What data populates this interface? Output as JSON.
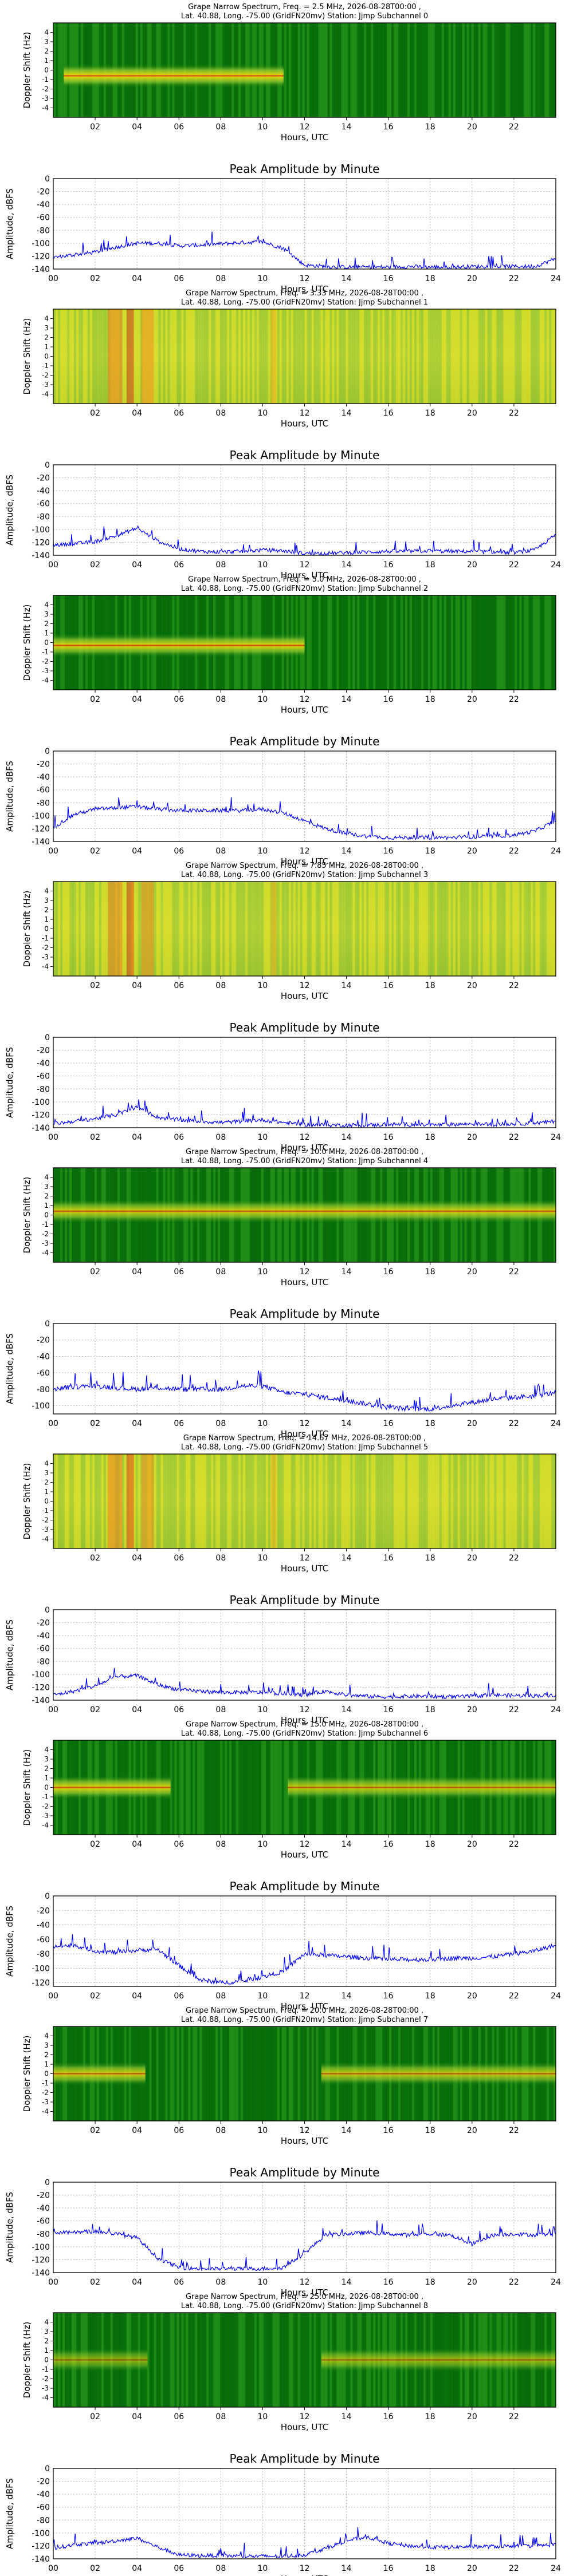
{
  "figure": {
    "common_xlabel": "Hours, UTC",
    "amp_title": "Peak Amplitude by Minute",
    "amp_ylabel": "Amplitude, dBFS",
    "spec_ylabel": "Doppler Shift (Hz)",
    "spec_xticks": [
      "02",
      "04",
      "06",
      "08",
      "10",
      "12",
      "14",
      "16",
      "18",
      "20",
      "22"
    ],
    "amp_xticks": [
      "00",
      "02",
      "04",
      "06",
      "08",
      "10",
      "12",
      "14",
      "16",
      "18",
      "20",
      "22",
      "24"
    ],
    "spec_yticks": [
      "4",
      "3",
      "2",
      "1",
      "0",
      "-1",
      "-2",
      "-3",
      "-4"
    ],
    "colors": {
      "line": "#0000ff",
      "spec_green": "#0b7a0b",
      "spec_yellow": "#e8e800",
      "spec_red": "#e82000"
    }
  },
  "chart_data": [
    {
      "type": "heatmap",
      "subchannel": 0,
      "title": "Grape Narrow Spectrum, Freq. = 2.5 MHz, 2026-08-28T00:00 ,",
      "subtitle": "Lat.  40.88, Long. -75.00 (GridFN20mv) Station: Jjmp Subchannel 0",
      "xlabel": "Hours, UTC",
      "ylabel": "Doppler Shift (Hz)",
      "xlim": [
        0,
        24
      ],
      "ylim": [
        -5,
        5
      ],
      "bands": [
        {
          "from": 0.5,
          "to": 11.0,
          "center_hz": -0.6,
          "intensity": 0.9
        }
      ],
      "background": "green"
    },
    {
      "type": "line",
      "subchannel": 0,
      "title": "Peak Amplitude by Minute",
      "xlabel": "Hours, UTC",
      "ylabel": "Amplitude, dBFS",
      "xlim": [
        0,
        24
      ],
      "ylim": [
        -140,
        0
      ],
      "yticks": [
        0,
        -20,
        -40,
        -60,
        -80,
        -100,
        -120,
        -140
      ],
      "x": [
        0,
        1,
        2,
        3,
        4,
        5,
        6,
        7,
        8,
        9,
        10,
        11,
        12,
        13,
        14,
        15,
        16,
        17,
        18,
        19,
        20,
        21,
        22,
        23,
        24
      ],
      "y": [
        -122,
        -118,
        -114,
        -106,
        -100,
        -100,
        -104,
        -103,
        -101,
        -99,
        -98,
        -108,
        -134,
        -136,
        -137,
        -137,
        -137,
        -136,
        -137,
        -137,
        -136,
        -136,
        -136,
        -136,
        -124
      ]
    },
    {
      "type": "heatmap",
      "subchannel": 1,
      "title": "Grape Narrow Spectrum, Freq. = 3.33 MHz, 2026-08-28T00:00 ,",
      "subtitle": "Lat.  40.88, Long. -75.00 (GridFN20mv) Station: Jjmp Subchannel 1",
      "xlabel": "Hours, UTC",
      "ylabel": "Doppler Shift (Hz)",
      "xlim": [
        0,
        24
      ],
      "ylim": [
        -5,
        5
      ],
      "bands": [],
      "background": "yellow-green"
    },
    {
      "type": "line",
      "subchannel": 1,
      "title": "Peak Amplitude by Minute",
      "xlabel": "Hours, UTC",
      "ylabel": "Amplitude, dBFS",
      "xlim": [
        0,
        24
      ],
      "ylim": [
        -140,
        0
      ],
      "yticks": [
        0,
        -20,
        -40,
        -60,
        -80,
        -100,
        -120,
        -140
      ],
      "x": [
        0,
        1,
        2,
        3,
        4,
        5,
        6,
        7,
        8,
        9,
        10,
        11,
        12,
        13,
        14,
        15,
        16,
        17,
        18,
        19,
        20,
        21,
        22,
        23,
        24
      ],
      "y": [
        -124,
        -122,
        -119,
        -110,
        -98,
        -118,
        -130,
        -134,
        -135,
        -134,
        -132,
        -133,
        -137,
        -137,
        -136,
        -135,
        -134,
        -134,
        -133,
        -134,
        -134,
        -135,
        -136,
        -132,
        -108
      ]
    },
    {
      "type": "heatmap",
      "subchannel": 2,
      "title": "Grape Narrow Spectrum, Freq. = 5.0 MHz, 2026-08-28T00:00 ,",
      "subtitle": "Lat.  40.88, Long. -75.00 (GridFN20mv) Station: Jjmp Subchannel 2",
      "xlabel": "Hours, UTC",
      "ylabel": "Doppler Shift (Hz)",
      "xlim": [
        0,
        24
      ],
      "ylim": [
        -5,
        5
      ],
      "bands": [
        {
          "from": 0.0,
          "to": 12.0,
          "center_hz": -0.3,
          "intensity": 0.85
        }
      ],
      "background": "green"
    },
    {
      "type": "line",
      "subchannel": 2,
      "title": "Peak Amplitude by Minute",
      "xlabel": "Hours, UTC",
      "ylabel": "Amplitude, dBFS",
      "xlim": [
        0,
        24
      ],
      "ylim": [
        -140,
        0
      ],
      "yticks": [
        0,
        -20,
        -40,
        -60,
        -80,
        -100,
        -120,
        -140
      ],
      "x": [
        0,
        1,
        2,
        3,
        4,
        5,
        6,
        7,
        8,
        9,
        10,
        11,
        12,
        13,
        14,
        15,
        16,
        17,
        18,
        19,
        20,
        21,
        22,
        23,
        24
      ],
      "y": [
        -118,
        -98,
        -90,
        -88,
        -86,
        -90,
        -92,
        -92,
        -92,
        -92,
        -90,
        -96,
        -108,
        -120,
        -128,
        -132,
        -134,
        -134,
        -134,
        -134,
        -133,
        -132,
        -130,
        -124,
        -108
      ]
    },
    {
      "type": "heatmap",
      "subchannel": 3,
      "title": "Grape Narrow Spectrum, Freq. = 7.85 MHz, 2026-08-28T00:00 ,",
      "subtitle": "Lat.  40.88, Long. -75.00 (GridFN20mv) Station: Jjmp Subchannel 3",
      "xlabel": "Hours, UTC",
      "ylabel": "Doppler Shift (Hz)",
      "xlim": [
        0,
        24
      ],
      "ylim": [
        -5,
        5
      ],
      "bands": [],
      "background": "yellow-green"
    },
    {
      "type": "line",
      "subchannel": 3,
      "title": "Peak Amplitude by Minute",
      "xlabel": "Hours, UTC",
      "ylabel": "Amplitude, dBFS",
      "xlim": [
        0,
        24
      ],
      "ylim": [
        -140,
        0
      ],
      "yticks": [
        0,
        -20,
        -40,
        -60,
        -80,
        -100,
        -120,
        -140
      ],
      "x": [
        0,
        1,
        2,
        3,
        4,
        5,
        6,
        7,
        8,
        9,
        10,
        11,
        12,
        13,
        14,
        15,
        16,
        17,
        18,
        19,
        20,
        21,
        22,
        23,
        24
      ],
      "y": [
        -134,
        -130,
        -126,
        -120,
        -108,
        -124,
        -128,
        -130,
        -132,
        -130,
        -128,
        -132,
        -135,
        -136,
        -136,
        -136,
        -135,
        -135,
        -136,
        -135,
        -134,
        -135,
        -134,
        -133,
        -130
      ]
    },
    {
      "type": "heatmap",
      "subchannel": 4,
      "title": "Grape Narrow Spectrum, Freq. = 10.0 MHz, 2026-08-28T00:00 ,",
      "subtitle": "Lat.  40.88, Long. -75.00 (GridFN20mv) Station: Jjmp Subchannel 4",
      "xlabel": "Hours, UTC",
      "ylabel": "Doppler Shift (Hz)",
      "xlim": [
        0,
        24
      ],
      "ylim": [
        -5,
        5
      ],
      "bands": [
        {
          "from": 0.0,
          "to": 24.0,
          "center_hz": 0.4,
          "intensity": 0.8
        }
      ],
      "background": "green"
    },
    {
      "type": "line",
      "subchannel": 4,
      "title": "Peak Amplitude by Minute",
      "xlabel": "Hours, UTC",
      "ylabel": "Amplitude, dBFS",
      "xlim": [
        0,
        24
      ],
      "ylim": [
        -110,
        0
      ],
      "yticks": [
        0,
        -20,
        -40,
        -60,
        -80,
        -100
      ],
      "x": [
        0,
        1,
        2,
        3,
        4,
        5,
        6,
        7,
        8,
        9,
        10,
        11,
        12,
        13,
        14,
        15,
        16,
        17,
        18,
        19,
        20,
        21,
        22,
        23,
        24
      ],
      "y": [
        -80,
        -77,
        -76,
        -78,
        -80,
        -78,
        -80,
        -80,
        -80,
        -76,
        -76,
        -84,
        -86,
        -90,
        -94,
        -98,
        -102,
        -104,
        -104,
        -100,
        -96,
        -92,
        -90,
        -88,
        -84
      ]
    },
    {
      "type": "heatmap",
      "subchannel": 5,
      "title": "Grape Narrow Spectrum, Freq. = 14.67 MHz, 2026-08-28T00:00 ,",
      "subtitle": "Lat.  40.88, Long. -75.00 (GridFN20mv) Station: Jjmp Subchannel 5",
      "xlabel": "Hours, UTC",
      "ylabel": "Doppler Shift (Hz)",
      "xlim": [
        0,
        24
      ],
      "ylim": [
        -5,
        5
      ],
      "bands": [],
      "background": "yellow-green"
    },
    {
      "type": "line",
      "subchannel": 5,
      "title": "Peak Amplitude by Minute",
      "xlabel": "Hours, UTC",
      "ylabel": "Amplitude, dBFS",
      "xlim": [
        0,
        24
      ],
      "ylim": [
        -140,
        0
      ],
      "yticks": [
        0,
        -20,
        -40,
        -60,
        -80,
        -100,
        -120,
        -140
      ],
      "x": [
        0,
        1,
        2,
        3,
        4,
        5,
        6,
        7,
        8,
        9,
        10,
        11,
        12,
        13,
        14,
        15,
        16,
        17,
        18,
        19,
        20,
        21,
        22,
        23,
        24
      ],
      "y": [
        -132,
        -126,
        -118,
        -104,
        -102,
        -116,
        -124,
        -126,
        -128,
        -128,
        -128,
        -130,
        -132,
        -126,
        -132,
        -134,
        -135,
        -134,
        -134,
        -135,
        -134,
        -132,
        -133,
        -133,
        -132
      ]
    },
    {
      "type": "heatmap",
      "subchannel": 6,
      "title": "Grape Narrow Spectrum, Freq. = 15.0 MHz, 2026-08-28T00:00 ,",
      "subtitle": "Lat.  40.88, Long. -75.00 (GridFN20mv) Station: Jjmp Subchannel 6",
      "xlabel": "Hours, UTC",
      "ylabel": "Doppler Shift (Hz)",
      "xlim": [
        0,
        24
      ],
      "ylim": [
        -5,
        5
      ],
      "bands": [
        {
          "from": 0.0,
          "to": 5.6,
          "center_hz": 0.0,
          "intensity": 0.85
        },
        {
          "from": 11.2,
          "to": 24.0,
          "center_hz": 0.0,
          "intensity": 0.75
        }
      ],
      "background": "green"
    },
    {
      "type": "line",
      "subchannel": 6,
      "title": "Peak Amplitude by Minute",
      "xlabel": "Hours, UTC",
      "ylabel": "Amplitude, dBFS",
      "xlim": [
        0,
        24
      ],
      "ylim": [
        -125,
        0
      ],
      "yticks": [
        0,
        -20,
        -40,
        -60,
        -80,
        -100,
        -120
      ],
      "x": [
        0,
        1,
        2,
        3,
        4,
        5,
        6,
        7,
        8,
        9,
        10,
        11,
        12,
        13,
        14,
        15,
        16,
        17,
        18,
        19,
        20,
        21,
        22,
        23,
        24
      ],
      "y": [
        -70,
        -68,
        -76,
        -78,
        -75,
        -74,
        -96,
        -116,
        -120,
        -118,
        -112,
        -104,
        -80,
        -82,
        -84,
        -86,
        -88,
        -88,
        -88,
        -86,
        -86,
        -84,
        -80,
        -76,
        -68
      ]
    },
    {
      "type": "heatmap",
      "subchannel": 7,
      "title": "Grape Narrow Spectrum, Freq. = 20.0 MHz, 2026-08-28T00:00 ,",
      "subtitle": "Lat.  40.88, Long. -75.00 (GridFN20mv) Station: Jjmp Subchannel 7",
      "xlabel": "Hours, UTC",
      "ylabel": "Doppler Shift (Hz)",
      "xlim": [
        0,
        24
      ],
      "ylim": [
        -5,
        5
      ],
      "bands": [
        {
          "from": 0.0,
          "to": 4.4,
          "center_hz": 0.0,
          "intensity": 0.8
        },
        {
          "from": 12.8,
          "to": 24.0,
          "center_hz": 0.0,
          "intensity": 0.75
        }
      ],
      "background": "green"
    },
    {
      "type": "line",
      "subchannel": 7,
      "title": "Peak Amplitude by Minute",
      "xlabel": "Hours, UTC",
      "ylabel": "Amplitude, dBFS",
      "xlim": [
        0,
        24
      ],
      "ylim": [
        -140,
        0
      ],
      "yticks": [
        0,
        -20,
        -40,
        -60,
        -80,
        -100,
        -120,
        -140
      ],
      "x": [
        0,
        1,
        2,
        3,
        4,
        5,
        6,
        7,
        8,
        9,
        10,
        11,
        12,
        13,
        14,
        15,
        16,
        17,
        18,
        19,
        20,
        21,
        22,
        23,
        24
      ],
      "y": [
        -78,
        -78,
        -76,
        -80,
        -86,
        -118,
        -132,
        -134,
        -134,
        -134,
        -134,
        -132,
        -110,
        -82,
        -80,
        -78,
        -80,
        -82,
        -80,
        -82,
        -96,
        -82,
        -80,
        -82,
        -80
      ]
    },
    {
      "type": "heatmap",
      "subchannel": 8,
      "title": "Grape Narrow Spectrum, Freq. = 25.0 MHz, 2026-08-28T00:00 ,",
      "subtitle": "Lat.  40.88, Long. -75.00 (GridFN20mv) Station: Jjmp Subchannel 8",
      "xlabel": "Hours, UTC",
      "ylabel": "Doppler Shift (Hz)",
      "xlim": [
        0,
        24
      ],
      "ylim": [
        -5,
        5
      ],
      "bands": [
        {
          "from": 0.0,
          "to": 4.5,
          "center_hz": 0.0,
          "intensity": 0.55
        },
        {
          "from": 12.8,
          "to": 24.0,
          "center_hz": 0.0,
          "intensity": 0.6
        }
      ],
      "background": "green"
    },
    {
      "type": "line",
      "subchannel": 8,
      "title": "Peak Amplitude by Minute",
      "xlabel": "Hours, UTC",
      "ylabel": "Amplitude, dBFS",
      "xlim": [
        0,
        24
      ],
      "ylim": [
        -140,
        0
      ],
      "yticks": [
        0,
        -20,
        -40,
        -60,
        -80,
        -100,
        -120,
        -140
      ],
      "x": [
        0,
        1,
        2,
        3,
        4,
        5,
        6,
        7,
        8,
        9,
        10,
        11,
        12,
        13,
        14,
        15,
        16,
        17,
        18,
        19,
        20,
        21,
        22,
        23,
        24
      ],
      "y": [
        -124,
        -118,
        -116,
        -112,
        -108,
        -122,
        -134,
        -135,
        -135,
        -136,
        -136,
        -136,
        -134,
        -124,
        -112,
        -106,
        -116,
        -120,
        -122,
        -122,
        -121,
        -121,
        -120,
        -120,
        -118
      ]
    }
  ]
}
